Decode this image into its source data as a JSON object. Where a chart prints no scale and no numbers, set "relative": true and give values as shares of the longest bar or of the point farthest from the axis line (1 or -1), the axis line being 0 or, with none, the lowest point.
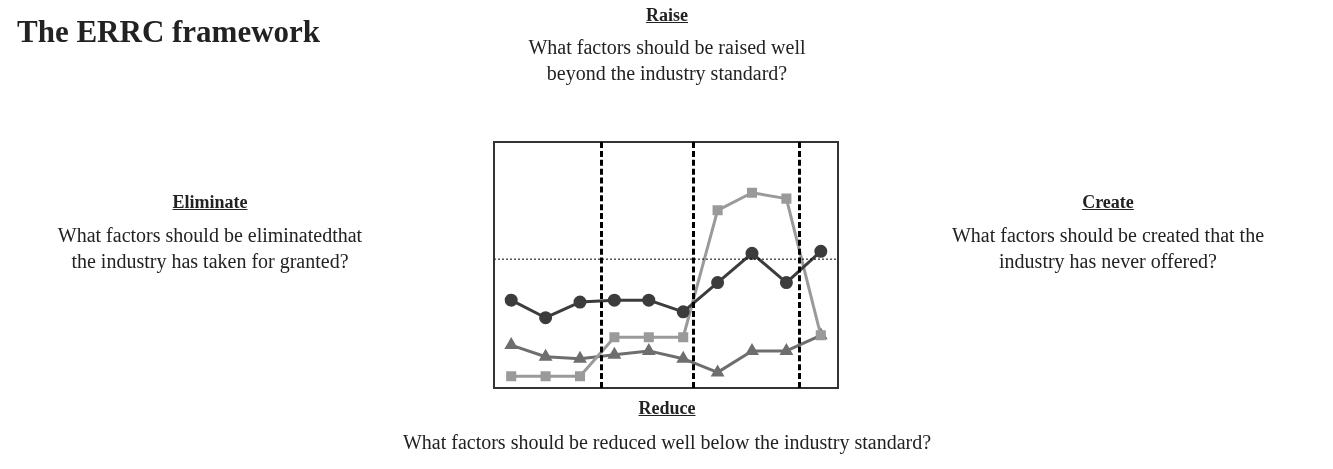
{
  "chart_data": {
    "type": "line",
    "title": "The ERRC framework",
    "relative": true,
    "annotations": [
      "Raise",
      "What factors should be raised well beyond the industry standard?",
      "Eliminate",
      "What factors should be eliminatedthat the industry has taken for granted?",
      "Create",
      "What factors should be created that the industry has never offered?",
      "Reduce",
      "What factors should be reduced well below the industry standard?"
    ],
    "categories": [
      null,
      null,
      null,
      null,
      null,
      null,
      null,
      null,
      null,
      null
    ],
    "series": [
      {
        "color": "#3c3c3c",
        "marker": "circle",
        "values": [
          0.45,
          0.36,
          0.44,
          0.45,
          0.45,
          0.39,
          0.54,
          0.69,
          0.54,
          0.7
        ]
      },
      {
        "color": "#9a9a9a",
        "marker": "square",
        "values": [
          0.06,
          0.06,
          0.06,
          0.26,
          0.26,
          0.26,
          0.91,
          1,
          0.97,
          0.27
        ]
      },
      {
        "color": "#6e6e6e",
        "marker": "triangle",
        "values": [
          0.22,
          0.16,
          0.15,
          0.17,
          0.19,
          0.15,
          0.08,
          0.19,
          0.19,
          0.27
        ]
      }
    ],
    "ref_lines": [
      {
        "axis": "y",
        "value": 0.66,
        "color": "#000000",
        "line_style": "dotted"
      }
    ]
  }
}
